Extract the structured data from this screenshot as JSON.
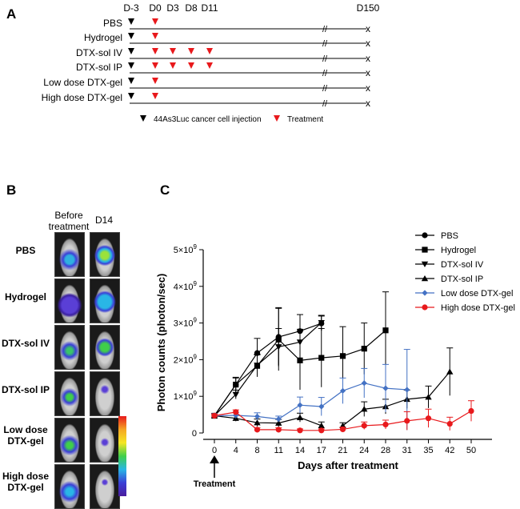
{
  "panel_a": {
    "letter": "A",
    "days": [
      "D-3",
      "D0",
      "D3",
      "D8",
      "D11",
      "D150"
    ],
    "groups": [
      {
        "name": "PBS",
        "treatments": [
          "D0"
        ]
      },
      {
        "name": "Hydrogel",
        "treatments": [
          "D0"
        ]
      },
      {
        "name": "DTX-sol IV",
        "treatments": [
          "D0",
          "D3",
          "D8",
          "D11"
        ]
      },
      {
        "name": "DTX-sol IP",
        "treatments": [
          "D0",
          "D3",
          "D8",
          "D11"
        ]
      },
      {
        "name": "Low dose DTX-gel",
        "treatments": [
          "D0"
        ]
      },
      {
        "name": "High dose DTX-gel",
        "treatments": [
          "D0"
        ]
      }
    ],
    "end_mark": "x",
    "break_mark": "//",
    "legend_injection": "44As3Luc cancer cell injection",
    "legend_treatment": "Treatment",
    "colors": {
      "injection": "#000000",
      "treatment": "#e8191c"
    }
  },
  "panel_b": {
    "letter": "B",
    "col_before_line1": "Before",
    "col_before_line2": "treatment",
    "col_d14": "D14",
    "rows": [
      {
        "line1": "PBS",
        "line2": ""
      },
      {
        "line1": "Hydrogel",
        "line2": ""
      },
      {
        "line1": "DTX-sol IV",
        "line2": ""
      },
      {
        "line1": "DTX-sol IP",
        "line2": ""
      },
      {
        "line1": "Low dose",
        "line2": "DTX-gel"
      },
      {
        "line1": "High dose",
        "line2": "DTX-gel"
      }
    ]
  },
  "chart_data": {
    "letter": "C",
    "type": "line",
    "ylabel": "Photon counts (photon/sec)",
    "xlabel": "Days after treatment",
    "annotation": "Treatment",
    "ylim": [
      0,
      5
    ],
    "y_ticks": [
      {
        "value": 0,
        "label": "0"
      },
      {
        "value": 1,
        "label": "1×10",
        "sup": "9"
      },
      {
        "value": 2,
        "label": "2×10",
        "sup": "9"
      },
      {
        "value": 3,
        "label": "3×10",
        "sup": "9"
      },
      {
        "value": 4,
        "label": "4×10",
        "sup": "9"
      },
      {
        "value": 5,
        "label": "5×10",
        "sup": "9"
      }
    ],
    "categories": [
      "0",
      "4",
      "8",
      "11",
      "14",
      "17",
      "21",
      "24",
      "28",
      "31",
      "35",
      "42",
      "50"
    ],
    "series": [
      {
        "name": "PBS",
        "color": "#000000",
        "marker": "circle",
        "values": [
          0.47,
          1.32,
          2.18,
          2.62,
          2.78,
          2.99,
          null,
          null,
          null,
          null,
          null,
          null,
          null
        ],
        "errors": [
          0.06,
          0.2,
          0.4,
          0.8,
          0.45,
          0.2,
          null,
          null,
          null,
          null,
          null,
          null,
          null
        ]
      },
      {
        "name": "Hydrogel",
        "color": "#000000",
        "marker": "square",
        "values": [
          0.47,
          1.32,
          1.83,
          2.55,
          1.98,
          2.05,
          2.1,
          2.3,
          2.8,
          null,
          null,
          null,
          null
        ],
        "errors": [
          0.06,
          0.18,
          0.3,
          0.85,
          0.8,
          0.8,
          0.8,
          0.7,
          1.05,
          null,
          null,
          null,
          null
        ]
      },
      {
        "name": "DTX-sol IV",
        "color": "#000000",
        "marker": "triangle-down",
        "values": [
          0.47,
          1.05,
          1.85,
          2.35,
          2.48,
          3.01,
          null,
          null,
          null,
          null,
          null,
          null,
          null
        ],
        "errors": [
          0.06,
          0.12,
          0.3,
          0.5,
          0.35,
          0.2,
          null,
          null,
          null,
          null,
          null,
          null,
          null
        ]
      },
      {
        "name": "DTX-sol IP",
        "color": "#000000",
        "marker": "triangle-up",
        "values": [
          0.47,
          0.4,
          0.28,
          0.27,
          0.42,
          0.2,
          0.2,
          0.65,
          0.72,
          0.92,
          0.98,
          1.67,
          null
        ],
        "errors": [
          0.06,
          0.08,
          0.1,
          0.1,
          0.12,
          0.1,
          0.08,
          0.2,
          0.2,
          0.25,
          0.3,
          0.65,
          null
        ],
        "gap_after": [
          "17"
        ]
      },
      {
        "name": "Low dose DTX-gel",
        "color": "#4472c4",
        "marker": "diamond",
        "values": [
          0.47,
          0.48,
          0.45,
          0.38,
          0.76,
          0.72,
          1.15,
          1.36,
          1.22,
          1.18,
          null,
          null,
          null
        ],
        "errors": [
          0.06,
          0.08,
          0.1,
          0.08,
          0.22,
          0.25,
          0.35,
          0.4,
          0.65,
          1.1,
          null,
          null,
          null
        ]
      },
      {
        "name": "High dose DTX-gel",
        "color": "#e8191c",
        "marker": "circle",
        "values": [
          0.47,
          0.57,
          0.09,
          0.09,
          0.07,
          0.07,
          0.1,
          0.2,
          0.23,
          0.33,
          0.4,
          0.25,
          0.6
        ],
        "errors": [
          0.05,
          0.06,
          0.05,
          0.05,
          0.04,
          0.04,
          0.06,
          0.1,
          0.12,
          0.25,
          0.25,
          0.18,
          0.28
        ]
      }
    ]
  }
}
